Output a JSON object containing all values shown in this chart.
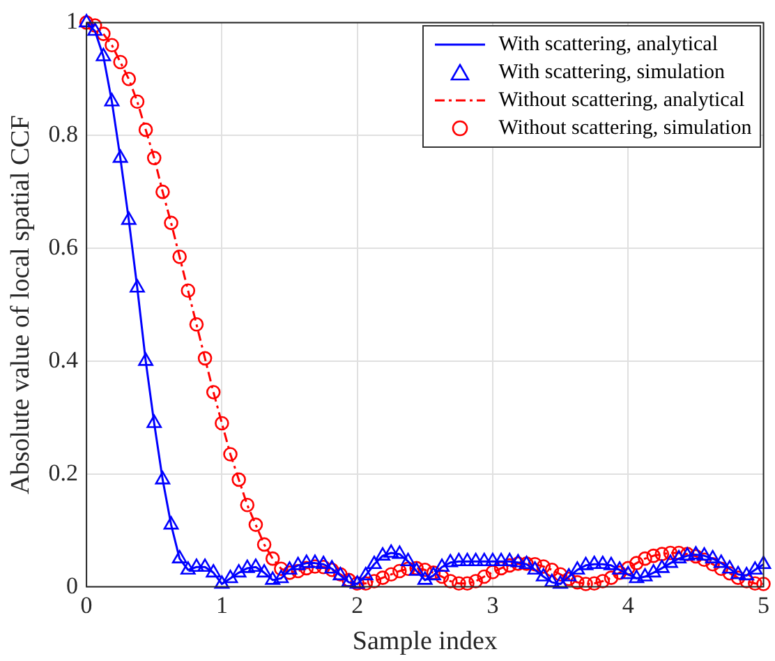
{
  "chart_data": {
    "type": "line",
    "xlabel": "Sample index",
    "ylabel": "Absolute value of local spatial CCF",
    "x": [
      0,
      0.0625,
      0.125,
      0.1875,
      0.25,
      0.3125,
      0.375,
      0.4375,
      0.5,
      0.5625,
      0.625,
      0.6875,
      0.75,
      0.8125,
      0.875,
      0.9375,
      1,
      1.0625,
      1.125,
      1.1875,
      1.25,
      1.3125,
      1.375,
      1.4375,
      1.5,
      1.5625,
      1.625,
      1.6875,
      1.75,
      1.8125,
      1.875,
      1.9375,
      2,
      2.0625,
      2.125,
      2.1875,
      2.25,
      2.3125,
      2.375,
      2.4375,
      2.5,
      2.5625,
      2.625,
      2.6875,
      2.75,
      2.8125,
      2.875,
      2.9375,
      3,
      3.0625,
      3.125,
      3.1875,
      3.25,
      3.3125,
      3.375,
      3.4375,
      3.5,
      3.5625,
      3.625,
      3.6875,
      3.75,
      3.8125,
      3.875,
      3.9375,
      4,
      4.0625,
      4.125,
      4.1875,
      4.25,
      4.3125,
      4.375,
      4.4375,
      4.5,
      4.5625,
      4.625,
      4.6875,
      4.75,
      4.8125,
      4.875,
      4.9375,
      5
    ],
    "series": [
      {
        "name": "With scattering, analytical",
        "color": "#0000ff",
        "marker": "none",
        "line_style": "solid",
        "values": [
          1.0,
          0.985,
          0.94,
          0.86,
          0.76,
          0.65,
          0.53,
          0.4,
          0.29,
          0.19,
          0.11,
          0.05,
          0.03,
          0.035,
          0.035,
          0.025,
          0.005,
          0.015,
          0.025,
          0.033,
          0.035,
          0.025,
          0.012,
          0.015,
          0.03,
          0.038,
          0.042,
          0.042,
          0.04,
          0.032,
          0.02,
          0.008,
          0.005,
          0.02,
          0.04,
          0.055,
          0.06,
          0.058,
          0.045,
          0.028,
          0.012,
          0.02,
          0.035,
          0.043,
          0.045,
          0.045,
          0.045,
          0.045,
          0.045,
          0.045,
          0.045,
          0.043,
          0.04,
          0.03,
          0.018,
          0.008,
          0.005,
          0.018,
          0.03,
          0.038,
          0.04,
          0.04,
          0.038,
          0.03,
          0.022,
          0.015,
          0.018,
          0.025,
          0.033,
          0.042,
          0.05,
          0.055,
          0.057,
          0.055,
          0.05,
          0.042,
          0.032,
          0.022,
          0.02,
          0.03,
          0.04
        ]
      },
      {
        "name": "With scattering, simulation",
        "type": "scatter",
        "color": "#0000ff",
        "marker": "triangle",
        "values": [
          1.0,
          0.985,
          0.94,
          0.86,
          0.76,
          0.65,
          0.53,
          0.4,
          0.29,
          0.19,
          0.11,
          0.05,
          0.03,
          0.035,
          0.035,
          0.025,
          0.005,
          0.015,
          0.025,
          0.033,
          0.035,
          0.025,
          0.012,
          0.015,
          0.03,
          0.038,
          0.042,
          0.042,
          0.04,
          0.032,
          0.02,
          0.008,
          0.005,
          0.02,
          0.04,
          0.055,
          0.06,
          0.058,
          0.045,
          0.028,
          0.012,
          0.02,
          0.035,
          0.043,
          0.045,
          0.045,
          0.045,
          0.045,
          0.045,
          0.045,
          0.045,
          0.043,
          0.04,
          0.03,
          0.018,
          0.008,
          0.005,
          0.018,
          0.03,
          0.038,
          0.04,
          0.04,
          0.038,
          0.03,
          0.022,
          0.015,
          0.018,
          0.025,
          0.033,
          0.042,
          0.05,
          0.055,
          0.057,
          0.055,
          0.05,
          0.042,
          0.032,
          0.022,
          0.02,
          0.03,
          0.04
        ]
      },
      {
        "name": "Without scattering, analytical",
        "color": "#ff0000",
        "marker": "none",
        "line_style": "dashed",
        "values": [
          1.0,
          0.995,
          0.98,
          0.96,
          0.93,
          0.9,
          0.86,
          0.81,
          0.76,
          0.7,
          0.645,
          0.585,
          0.525,
          0.465,
          0.405,
          0.345,
          0.29,
          0.235,
          0.19,
          0.145,
          0.11,
          0.075,
          0.05,
          0.032,
          0.025,
          0.028,
          0.033,
          0.036,
          0.035,
          0.03,
          0.022,
          0.012,
          0.006,
          0.006,
          0.01,
          0.016,
          0.022,
          0.028,
          0.032,
          0.033,
          0.03,
          0.025,
          0.018,
          0.01,
          0.006,
          0.006,
          0.01,
          0.018,
          0.026,
          0.033,
          0.038,
          0.041,
          0.041,
          0.04,
          0.036,
          0.03,
          0.022,
          0.014,
          0.008,
          0.005,
          0.006,
          0.01,
          0.016,
          0.025,
          0.033,
          0.042,
          0.05,
          0.055,
          0.058,
          0.06,
          0.06,
          0.058,
          0.054,
          0.048,
          0.04,
          0.032,
          0.024,
          0.016,
          0.01,
          0.006,
          0.005
        ]
      },
      {
        "name": "Without scattering, simulation",
        "type": "scatter",
        "color": "#ff0000",
        "marker": "circle",
        "values": [
          1.0,
          0.995,
          0.98,
          0.96,
          0.93,
          0.9,
          0.86,
          0.81,
          0.76,
          0.7,
          0.645,
          0.585,
          0.525,
          0.465,
          0.405,
          0.345,
          0.29,
          0.235,
          0.19,
          0.145,
          0.11,
          0.075,
          0.05,
          0.032,
          0.025,
          0.028,
          0.033,
          0.036,
          0.035,
          0.03,
          0.022,
          0.012,
          0.006,
          0.006,
          0.01,
          0.016,
          0.022,
          0.028,
          0.032,
          0.033,
          0.03,
          0.025,
          0.018,
          0.01,
          0.006,
          0.006,
          0.01,
          0.018,
          0.026,
          0.033,
          0.038,
          0.041,
          0.041,
          0.04,
          0.036,
          0.03,
          0.022,
          0.014,
          0.008,
          0.005,
          0.006,
          0.01,
          0.016,
          0.025,
          0.033,
          0.042,
          0.05,
          0.055,
          0.058,
          0.06,
          0.06,
          0.058,
          0.054,
          0.048,
          0.04,
          0.032,
          0.024,
          0.016,
          0.01,
          0.006,
          0.005
        ]
      }
    ],
    "xlim": [
      0,
      5
    ],
    "xticks": [
      0,
      1,
      2,
      3,
      4,
      5
    ],
    "ylim": [
      0,
      1
    ],
    "yticks": [
      0,
      0.2,
      0.4,
      0.6,
      0.8,
      1
    ],
    "grid": true,
    "legend": "top right"
  }
}
